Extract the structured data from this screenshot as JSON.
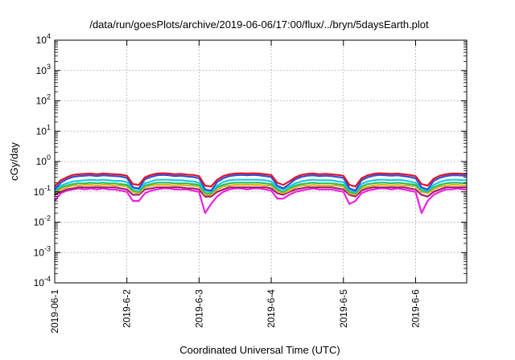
{
  "chart_data": {
    "type": "line",
    "title": "/data/run/goesPlots/archive/2019-06-06/17:00/flux/../bryn/5daysEarth.plot",
    "xlabel": "Coordinated Universal Time (UTC)",
    "ylabel": "cGy/day",
    "x_scale": "time",
    "y_scale": "log",
    "xlim": [
      "2019-06-01T00:00",
      "2019-06-06T17:00"
    ],
    "ylim": [
      0.0001,
      10000
    ],
    "grid": true,
    "legend": "none",
    "xticks": [
      {
        "label": "2019-06-1",
        "value": "2019-06-01"
      },
      {
        "label": "2019-6-2",
        "value": "2019-06-02"
      },
      {
        "label": "2019-6-3",
        "value": "2019-06-03"
      },
      {
        "label": "2019-6-4",
        "value": "2019-06-04"
      },
      {
        "label": "2019-6-5",
        "value": "2019-06-05"
      },
      {
        "label": "2019-6-6",
        "value": "2019-06-06"
      }
    ],
    "yticks": [
      {
        "base": "10",
        "exp": "-4",
        "value": 0.0001
      },
      {
        "base": "10",
        "exp": "-3",
        "value": 0.001
      },
      {
        "base": "10",
        "exp": "-2",
        "value": 0.01
      },
      {
        "base": "10",
        "exp": "-1",
        "value": 0.1
      },
      {
        "base": "10",
        "exp": "0",
        "value": 1
      },
      {
        "base": "10",
        "exp": "1",
        "value": 10
      },
      {
        "base": "10",
        "exp": "2",
        "value": 100
      },
      {
        "base": "10",
        "exp": "3",
        "value": 1000
      },
      {
        "base": "10",
        "exp": "4",
        "value": 10000
      }
    ],
    "x": [
      "2019-06-01T00:00",
      "2019-06-01T02:00",
      "2019-06-01T04:00",
      "2019-06-01T06:00",
      "2019-06-01T08:00",
      "2019-06-01T10:00",
      "2019-06-01T12:00",
      "2019-06-01T14:00",
      "2019-06-01T16:00",
      "2019-06-01T18:00",
      "2019-06-01T20:00",
      "2019-06-01T22:00",
      "2019-06-02T00:00",
      "2019-06-02T02:00",
      "2019-06-02T04:00",
      "2019-06-02T06:00",
      "2019-06-02T08:00",
      "2019-06-02T10:00",
      "2019-06-02T12:00",
      "2019-06-02T14:00",
      "2019-06-02T16:00",
      "2019-06-02T18:00",
      "2019-06-02T20:00",
      "2019-06-02T22:00",
      "2019-06-03T00:00",
      "2019-06-03T02:00",
      "2019-06-03T04:00",
      "2019-06-03T06:00",
      "2019-06-03T08:00",
      "2019-06-03T10:00",
      "2019-06-03T12:00",
      "2019-06-03T14:00",
      "2019-06-03T16:00",
      "2019-06-03T18:00",
      "2019-06-03T20:00",
      "2019-06-03T22:00",
      "2019-06-04T00:00",
      "2019-06-04T02:00",
      "2019-06-04T04:00",
      "2019-06-04T06:00",
      "2019-06-04T08:00",
      "2019-06-04T10:00",
      "2019-06-04T12:00",
      "2019-06-04T14:00",
      "2019-06-04T16:00",
      "2019-06-04T18:00",
      "2019-06-04T20:00",
      "2019-06-04T22:00",
      "2019-06-05T00:00",
      "2019-06-05T02:00",
      "2019-06-05T04:00",
      "2019-06-05T06:00",
      "2019-06-05T08:00",
      "2019-06-05T10:00",
      "2019-06-05T12:00",
      "2019-06-05T14:00",
      "2019-06-05T16:00",
      "2019-06-05T18:00",
      "2019-06-05T20:00",
      "2019-06-05T22:00",
      "2019-06-06T00:00",
      "2019-06-06T02:00",
      "2019-06-06T04:00",
      "2019-06-06T06:00",
      "2019-06-06T08:00",
      "2019-06-06T10:00",
      "2019-06-06T12:00",
      "2019-06-06T14:00",
      "2019-06-06T16:00",
      "2019-06-06T17:00"
    ],
    "series": [
      {
        "color": "#e0142a",
        "values": [
          0.15,
          0.24,
          0.3,
          0.36,
          0.38,
          0.39,
          0.4,
          0.38,
          0.4,
          0.39,
          0.38,
          0.37,
          0.34,
          0.18,
          0.17,
          0.3,
          0.36,
          0.4,
          0.41,
          0.4,
          0.38,
          0.39,
          0.37,
          0.36,
          0.33,
          0.16,
          0.15,
          0.25,
          0.33,
          0.38,
          0.4,
          0.41,
          0.4,
          0.41,
          0.4,
          0.38,
          0.36,
          0.2,
          0.17,
          0.22,
          0.3,
          0.36,
          0.39,
          0.4,
          0.38,
          0.39,
          0.38,
          0.36,
          0.34,
          0.17,
          0.15,
          0.28,
          0.35,
          0.39,
          0.41,
          0.4,
          0.39,
          0.4,
          0.38,
          0.36,
          0.33,
          0.18,
          0.16,
          0.27,
          0.34,
          0.38,
          0.4,
          0.4,
          0.39,
          0.39
        ]
      },
      {
        "color": "#3050d8",
        "values": [
          0.12,
          0.2,
          0.26,
          0.31,
          0.33,
          0.34,
          0.35,
          0.33,
          0.35,
          0.34,
          0.33,
          0.32,
          0.29,
          0.14,
          0.13,
          0.26,
          0.31,
          0.35,
          0.36,
          0.35,
          0.33,
          0.34,
          0.32,
          0.31,
          0.28,
          0.12,
          0.11,
          0.21,
          0.28,
          0.33,
          0.35,
          0.36,
          0.35,
          0.36,
          0.35,
          0.33,
          0.31,
          0.16,
          0.13,
          0.18,
          0.26,
          0.31,
          0.34,
          0.35,
          0.33,
          0.34,
          0.33,
          0.31,
          0.29,
          0.13,
          0.11,
          0.24,
          0.3,
          0.34,
          0.36,
          0.35,
          0.34,
          0.35,
          0.33,
          0.31,
          0.28,
          0.14,
          0.12,
          0.23,
          0.29,
          0.33,
          0.35,
          0.35,
          0.34,
          0.34
        ]
      },
      {
        "color": "#18c8e8",
        "values": [
          0.11,
          0.16,
          0.19,
          0.22,
          0.23,
          0.24,
          0.25,
          0.24,
          0.25,
          0.24,
          0.23,
          0.23,
          0.21,
          0.13,
          0.12,
          0.19,
          0.22,
          0.25,
          0.25,
          0.25,
          0.24,
          0.24,
          0.23,
          0.22,
          0.2,
          0.11,
          0.1,
          0.16,
          0.21,
          0.24,
          0.25,
          0.25,
          0.25,
          0.25,
          0.25,
          0.24,
          0.22,
          0.14,
          0.12,
          0.15,
          0.19,
          0.22,
          0.24,
          0.25,
          0.24,
          0.24,
          0.24,
          0.22,
          0.21,
          0.12,
          0.1,
          0.18,
          0.22,
          0.24,
          0.25,
          0.25,
          0.24,
          0.25,
          0.24,
          0.22,
          0.2,
          0.13,
          0.11,
          0.17,
          0.21,
          0.24,
          0.25,
          0.25,
          0.24,
          0.24
        ]
      },
      {
        "color": "#28c060",
        "values": [
          0.1,
          0.14,
          0.16,
          0.18,
          0.19,
          0.19,
          0.2,
          0.19,
          0.2,
          0.19,
          0.19,
          0.18,
          0.17,
          0.11,
          0.1,
          0.16,
          0.18,
          0.2,
          0.2,
          0.2,
          0.19,
          0.19,
          0.19,
          0.18,
          0.17,
          0.09,
          0.09,
          0.14,
          0.17,
          0.19,
          0.2,
          0.2,
          0.2,
          0.2,
          0.2,
          0.19,
          0.18,
          0.12,
          0.1,
          0.13,
          0.16,
          0.18,
          0.19,
          0.2,
          0.19,
          0.19,
          0.19,
          0.18,
          0.17,
          0.1,
          0.09,
          0.15,
          0.18,
          0.19,
          0.2,
          0.2,
          0.19,
          0.2,
          0.19,
          0.18,
          0.17,
          0.11,
          0.1,
          0.14,
          0.17,
          0.19,
          0.2,
          0.2,
          0.19,
          0.19
        ]
      },
      {
        "color": "#e8b020",
        "values": [
          0.09,
          0.12,
          0.14,
          0.16,
          0.16,
          0.17,
          0.17,
          0.16,
          0.17,
          0.17,
          0.16,
          0.16,
          0.15,
          0.1,
          0.09,
          0.14,
          0.16,
          0.17,
          0.17,
          0.17,
          0.16,
          0.17,
          0.16,
          0.16,
          0.15,
          0.08,
          0.08,
          0.12,
          0.15,
          0.16,
          0.17,
          0.17,
          0.17,
          0.17,
          0.17,
          0.16,
          0.16,
          0.11,
          0.09,
          0.11,
          0.14,
          0.16,
          0.16,
          0.17,
          0.16,
          0.16,
          0.16,
          0.16,
          0.15,
          0.09,
          0.08,
          0.13,
          0.15,
          0.16,
          0.17,
          0.17,
          0.16,
          0.17,
          0.16,
          0.16,
          0.15,
          0.1,
          0.09,
          0.12,
          0.15,
          0.16,
          0.17,
          0.17,
          0.16,
          0.16
        ]
      },
      {
        "color": "#a02070",
        "values": [
          0.08,
          0.1,
          0.12,
          0.13,
          0.14,
          0.14,
          0.14,
          0.14,
          0.14,
          0.14,
          0.14,
          0.13,
          0.12,
          0.08,
          0.08,
          0.12,
          0.13,
          0.14,
          0.14,
          0.14,
          0.14,
          0.14,
          0.13,
          0.13,
          0.12,
          0.07,
          0.07,
          0.1,
          0.12,
          0.14,
          0.14,
          0.14,
          0.14,
          0.14,
          0.14,
          0.14,
          0.13,
          0.09,
          0.08,
          0.1,
          0.12,
          0.13,
          0.14,
          0.14,
          0.14,
          0.14,
          0.14,
          0.13,
          0.12,
          0.08,
          0.07,
          0.11,
          0.13,
          0.14,
          0.14,
          0.14,
          0.14,
          0.14,
          0.14,
          0.13,
          0.12,
          0.08,
          0.07,
          0.1,
          0.12,
          0.14,
          0.14,
          0.14,
          0.14,
          0.14
        ]
      },
      {
        "color": "#f020e0",
        "values": [
          0.05,
          0.09,
          0.11,
          0.12,
          0.13,
          0.12,
          0.13,
          0.12,
          0.13,
          0.12,
          0.12,
          0.11,
          0.1,
          0.05,
          0.05,
          0.09,
          0.11,
          0.12,
          0.13,
          0.13,
          0.12,
          0.12,
          0.12,
          0.11,
          0.1,
          0.02,
          0.04,
          0.07,
          0.1,
          0.12,
          0.13,
          0.13,
          0.12,
          0.13,
          0.13,
          0.12,
          0.11,
          0.06,
          0.06,
          0.08,
          0.1,
          0.11,
          0.12,
          0.13,
          0.12,
          0.12,
          0.12,
          0.11,
          0.1,
          0.04,
          0.05,
          0.09,
          0.11,
          0.12,
          0.13,
          0.13,
          0.12,
          0.13,
          0.12,
          0.11,
          0.1,
          0.02,
          0.05,
          0.08,
          0.1,
          0.12,
          0.12,
          0.13,
          0.12,
          0.12
        ]
      }
    ]
  }
}
